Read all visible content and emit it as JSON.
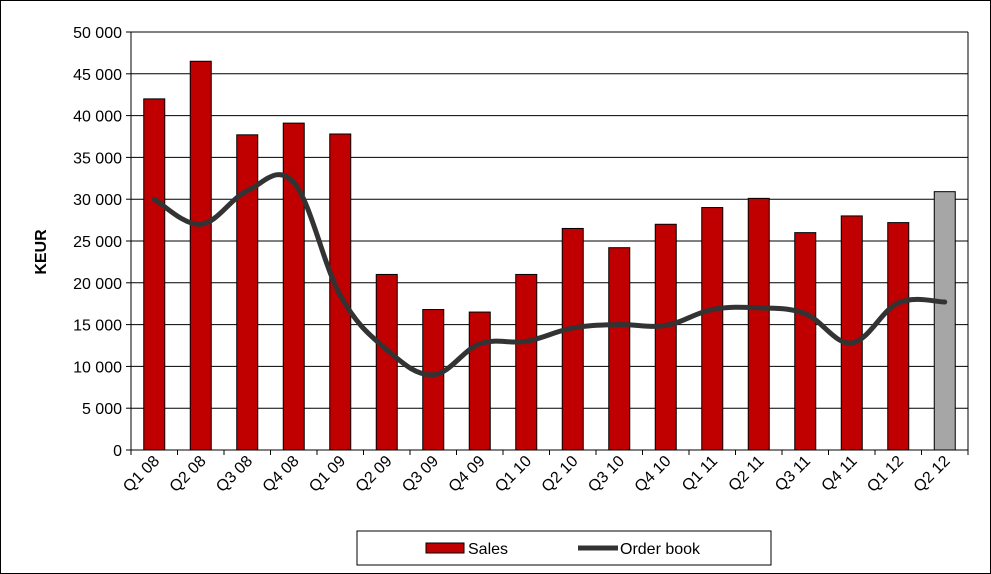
{
  "chart_data": {
    "type": "bar+line",
    "title": "",
    "xlabel": "",
    "ylabel": "KEUR",
    "ylim": [
      0,
      50000
    ],
    "yticks": [
      0,
      5000,
      10000,
      15000,
      20000,
      25000,
      30000,
      35000,
      40000,
      45000,
      50000
    ],
    "ytick_labels": [
      "0",
      "5 000",
      "10 000",
      "15 000",
      "20 000",
      "25 000",
      "30 000",
      "35 000",
      "40 000",
      "45 000",
      "50 000"
    ],
    "grid": true,
    "legend_position": "bottom",
    "categories": [
      "Q1 08",
      "Q2 08",
      "Q3 08",
      "Q4 08",
      "Q1 09",
      "Q2 09",
      "Q3 09",
      "Q4 09",
      "Q1 10",
      "Q2 10",
      "Q3 10",
      "Q4 10",
      "Q1 11",
      "Q2 11",
      "Q3 11",
      "Q4 11",
      "Q1 12",
      "Q2 12"
    ],
    "series": [
      {
        "name": "Sales",
        "type": "bar",
        "color": "#c00000",
        "values": [
          42000,
          46500,
          37700,
          39100,
          37800,
          21000,
          16800,
          16500,
          21000,
          26500,
          24200,
          27000,
          29000,
          30100,
          26000,
          28000,
          27200,
          30900
        ],
        "highlight_last_color": "#a6a6a6"
      },
      {
        "name": "Order book",
        "type": "line",
        "color": "#333333",
        "values": [
          30000,
          27000,
          31000,
          32000,
          18500,
          12000,
          9000,
          12700,
          13000,
          14600,
          15000,
          14900,
          16800,
          17000,
          16300,
          12800,
          17600,
          17700
        ]
      }
    ]
  }
}
